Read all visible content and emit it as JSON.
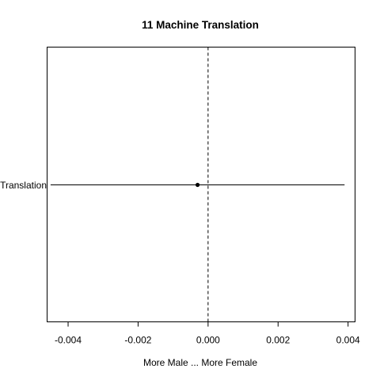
{
  "chart_data": {
    "type": "scatter",
    "title": "11 Machine Translation",
    "xlabel": "More Male ... More Female",
    "ylabel": "",
    "xlim": [
      -0.0046,
      0.0042
    ],
    "x_ticks": [
      -0.004,
      -0.002,
      0.0,
      0.002,
      0.004
    ],
    "x_tick_labels": [
      "-0.004",
      "-0.002",
      "0.000",
      "0.002",
      "0.004"
    ],
    "reference_line": {
      "x": 0.0,
      "style": "dashed"
    },
    "categories": [
      "Machine Translation"
    ],
    "category_label_visible": "Translation",
    "points": [
      {
        "category": "Machine Translation",
        "estimate": -0.0003,
        "ci_low": -0.0045,
        "ci_high": 0.0039
      }
    ],
    "grid": false,
    "legend": "none",
    "colors": {
      "ink": "#000000",
      "background": "#ffffff"
    }
  }
}
